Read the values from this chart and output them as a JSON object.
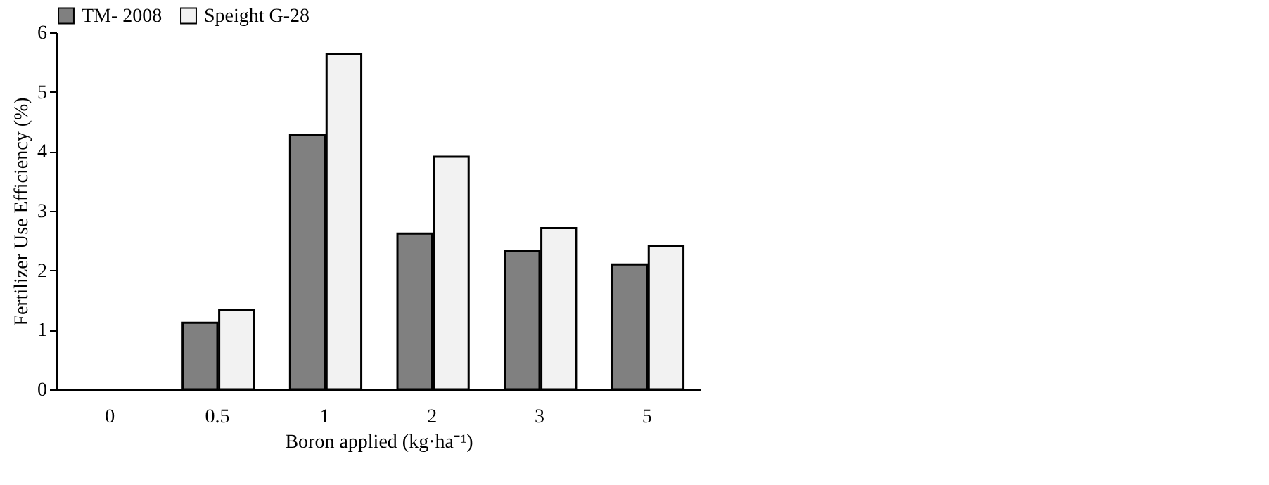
{
  "chart_data": {
    "type": "bar",
    "xlabel": "Boron applied (kg·ha⁻¹)",
    "ylabel": "Fertilizer Use Efficiency (%)",
    "categories": [
      "0",
      "0.5",
      "1",
      "2",
      "3",
      "5"
    ],
    "series": [
      {
        "name": "TM- 2008",
        "color": "#808080",
        "values": [
          0,
          1.12,
          4.28,
          2.62,
          2.33,
          2.1
        ]
      },
      {
        "name": "Speight G-28",
        "color": "#f2f2f2",
        "values": [
          0,
          1.34,
          5.64,
          3.91,
          2.71,
          2.41
        ]
      }
    ],
    "ylim": [
      0,
      6
    ],
    "yticks": [
      0,
      1,
      2,
      3,
      4,
      5,
      6
    ],
    "grid": false,
    "legend": "top"
  }
}
